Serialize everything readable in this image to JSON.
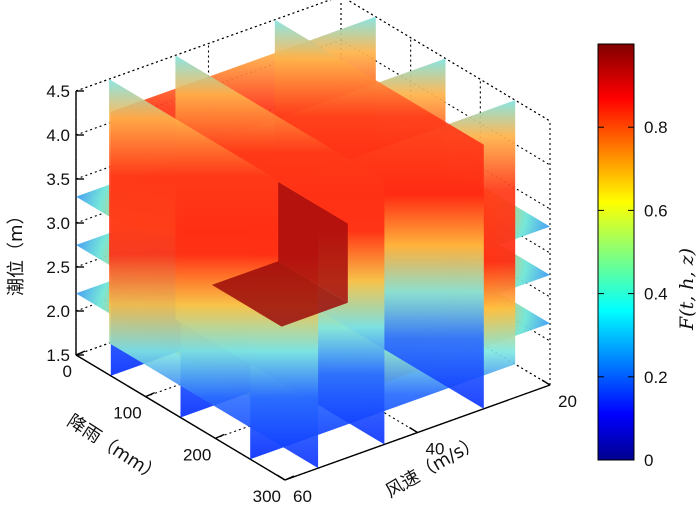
{
  "chart_data": {
    "type": "volumetric slice plot",
    "x_axis": {
      "label": "风速（m/s）",
      "ticks": [
        "20",
        "40",
        "60"
      ],
      "range": [
        20,
        60
      ]
    },
    "y_axis": {
      "label": "降雨（mm）",
      "ticks": [
        "0",
        "100",
        "200",
        "300"
      ],
      "range": [
        0,
        300
      ]
    },
    "z_axis": {
      "label": "潮位（m）",
      "ticks": [
        "1.5",
        "2.0",
        "2.5",
        "3.0",
        "3.5",
        "4.0",
        "4.5"
      ],
      "range": [
        1.5,
        4.5
      ]
    },
    "colorbar": {
      "label": "F(t, h, z)",
      "ticks": [
        "0",
        "0.2",
        "0.4",
        "0.6",
        "0.8"
      ],
      "range": [
        0,
        1
      ],
      "colormap": "jet"
    },
    "grid": true,
    "slices": {
      "wind_speed": [
        30,
        45,
        55
      ],
      "rainfall": [
        50,
        150,
        250
      ],
      "tide_level": [
        2.2,
        2.75,
        3.3
      ]
    }
  }
}
